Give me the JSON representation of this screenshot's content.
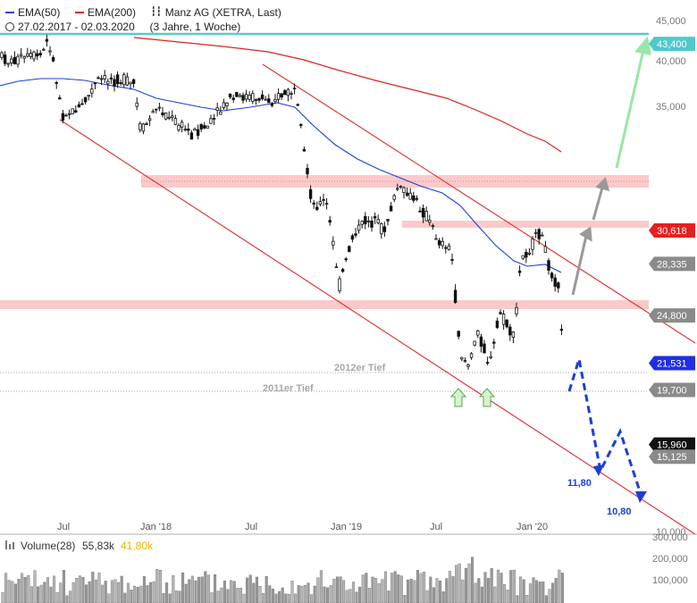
{
  "legend": {
    "ema50": "EMA(50)",
    "ema200": "EMA(200)",
    "instrument": "Manz AG (XETRA, Last)",
    "range": "27.02.2017 - 02.03.2020",
    "period": "(3 Jahre, 1 Woche)",
    "ema50_color": "#1a3fd6",
    "ema200_color": "#e02020"
  },
  "chart_data": {
    "type": "candlestick",
    "title": "Manz AG (XETRA, Last)",
    "subtitle": "27.02.2017 - 02.03.2020 (3 Jahre, 1 Woche)",
    "x_ticks": [
      "Jul",
      "Jan '18",
      "Jul",
      "Jan '19",
      "Jul",
      "Jan '20"
    ],
    "y_ticks": [
      "45,000",
      "40,000",
      "35,000",
      "10,000"
    ],
    "ylim": [
      10000,
      45000
    ],
    "price_labels": [
      {
        "text": "43,400",
        "value": 43400,
        "color": "#4fc9c9"
      },
      {
        "text": "30,618",
        "value": 30618,
        "color": "#e62020"
      },
      {
        "text": "28,335",
        "value": 28335,
        "color": "#8a8a8a"
      },
      {
        "text": "24,800",
        "value": 24800,
        "color": "#8a8a8a"
      },
      {
        "text": "21,531",
        "value": 21531,
        "color": "#1f2fe0"
      },
      {
        "text": "19,700",
        "value": 19700,
        "color": "#8a8a8a"
      },
      {
        "text": "15,960",
        "value": 15960,
        "color": "#111111"
      },
      {
        "text": "15,125",
        "value": 15125,
        "color": "#8a8a8a"
      }
    ],
    "support_zones": [
      28335,
      24800,
      19700
    ],
    "resistance_line": 43400,
    "lows": [
      {
        "label": "2012er Tief",
        "value": 15960
      },
      {
        "label": "2011er Tief",
        "value": 15125
      }
    ],
    "targets": [
      {
        "label": "11,80",
        "value": 11800
      },
      {
        "label": "10,80",
        "value": 10800
      }
    ],
    "series": [
      {
        "name": "EMA(50)",
        "color": "#1a3fd6"
      },
      {
        "name": "EMA(200)",
        "color": "#e02020"
      }
    ],
    "grid": false,
    "legend_position": "top-left"
  },
  "volume": {
    "label": "Volume(28)",
    "value1": "55,83k",
    "value2": "41,80k",
    "value2_color": "#f0b400",
    "ticks": [
      "300,000",
      "200,000",
      "100,000"
    ]
  }
}
